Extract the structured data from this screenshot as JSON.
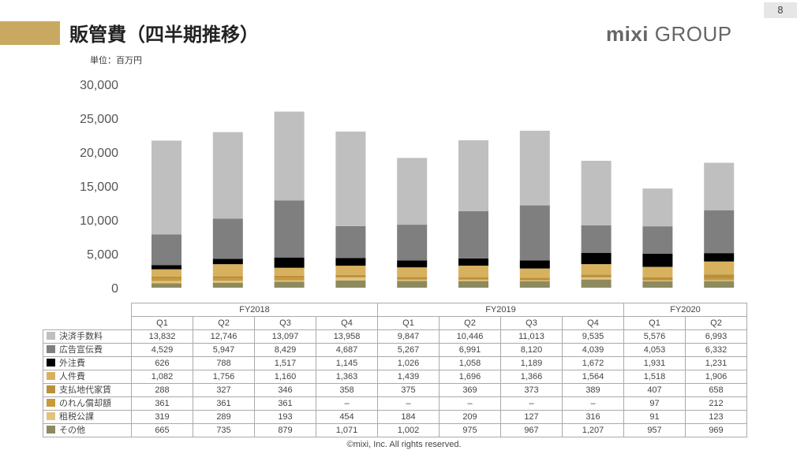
{
  "header": {
    "title": "販管費（四半期推移）",
    "unit": "単位：百万円",
    "page_number": "8",
    "logo_brand": "mixi",
    "logo_group": "GROUP"
  },
  "footer": {
    "copyright": "©mixi, Inc. All rights reserved."
  },
  "colors": {
    "決済手数料": "#bfbfbf",
    "広告宣伝費": "#7f7f7f",
    "外注費": "#000000",
    "人件費": "#d8b15e",
    "支払地代家賃": "#b8913a",
    "のれん償却額": "#c89a3c",
    "租税公課": "#e3c37c",
    "その他": "#8d8a5f"
  },
  "table": {
    "fiscal_years": [
      {
        "label": "FY2018",
        "span": 4
      },
      {
        "label": "FY2019",
        "span": 4
      },
      {
        "label": "FY2020",
        "span": 2
      }
    ],
    "quarters": [
      "Q1",
      "Q2",
      "Q3",
      "Q4",
      "Q1",
      "Q2",
      "Q3",
      "Q4",
      "Q1",
      "Q2"
    ],
    "rows": [
      {
        "name": "決済手数料",
        "cells": [
          "13,832",
          "12,746",
          "13,097",
          "13,958",
          "9,847",
          "10,446",
          "11,013",
          "9,535",
          "5,576",
          "6,993"
        ]
      },
      {
        "name": "広告宣伝費",
        "cells": [
          "4,529",
          "5,947",
          "8,429",
          "4,687",
          "5,267",
          "6,991",
          "8,120",
          "4,039",
          "4,053",
          "6,332"
        ]
      },
      {
        "name": "外注費",
        "cells": [
          "626",
          "788",
          "1,517",
          "1,145",
          "1,026",
          "1,058",
          "1,189",
          "1,672",
          "1,931",
          "1,231"
        ]
      },
      {
        "name": "人件費",
        "cells": [
          "1,082",
          "1,756",
          "1,160",
          "1,363",
          "1,439",
          "1,696",
          "1,366",
          "1,564",
          "1,518",
          "1,906"
        ]
      },
      {
        "name": "支払地代家賃",
        "cells": [
          "288",
          "327",
          "346",
          "358",
          "375",
          "369",
          "373",
          "389",
          "407",
          "658"
        ]
      },
      {
        "name": "のれん償却額",
        "cells": [
          "361",
          "361",
          "361",
          "–",
          "–",
          "–",
          "–",
          "–",
          "97",
          "212"
        ]
      },
      {
        "name": "租税公課",
        "cells": [
          "319",
          "289",
          "193",
          "454",
          "184",
          "209",
          "127",
          "316",
          "91",
          "123"
        ]
      },
      {
        "name": "その他",
        "cells": [
          "665",
          "735",
          "879",
          "1,071",
          "1,002",
          "975",
          "967",
          "1,207",
          "957",
          "969"
        ]
      }
    ]
  },
  "chart_data": {
    "type": "bar",
    "stacked": true,
    "categories": [
      "FY2018 Q1",
      "FY2018 Q2",
      "FY2018 Q3",
      "FY2018 Q4",
      "FY2019 Q1",
      "FY2019 Q2",
      "FY2019 Q3",
      "FY2019 Q4",
      "FY2020 Q1",
      "FY2020 Q2"
    ],
    "ylim": [
      0,
      30000
    ],
    "yticks": [
      0,
      5000,
      10000,
      15000,
      20000,
      25000,
      30000
    ],
    "ytick_labels": [
      "0",
      "5,000",
      "10,000",
      "15,000",
      "20,000",
      "25,000",
      "30,000"
    ],
    "grid": false,
    "series": [
      {
        "name": "その他",
        "values": [
          665,
          735,
          879,
          1071,
          1002,
          975,
          967,
          1207,
          957,
          969
        ]
      },
      {
        "name": "租税公課",
        "values": [
          319,
          289,
          193,
          454,
          184,
          209,
          127,
          316,
          91,
          123
        ]
      },
      {
        "name": "のれん償却額",
        "values": [
          361,
          361,
          361,
          0,
          0,
          0,
          0,
          0,
          97,
          212
        ]
      },
      {
        "name": "支払地代家賃",
        "values": [
          288,
          327,
          346,
          358,
          375,
          369,
          373,
          389,
          407,
          658
        ]
      },
      {
        "name": "人件費",
        "values": [
          1082,
          1756,
          1160,
          1363,
          1439,
          1696,
          1366,
          1564,
          1518,
          1906
        ]
      },
      {
        "name": "外注費",
        "values": [
          626,
          788,
          1517,
          1145,
          1026,
          1058,
          1189,
          1672,
          1931,
          1231
        ]
      },
      {
        "name": "広告宣伝費",
        "values": [
          4529,
          5947,
          8429,
          4687,
          5267,
          6991,
          8120,
          4039,
          4053,
          6332
        ]
      },
      {
        "name": "決済手数料",
        "values": [
          13832,
          12746,
          13097,
          13958,
          9847,
          10446,
          11013,
          9535,
          5576,
          6993
        ]
      }
    ]
  }
}
